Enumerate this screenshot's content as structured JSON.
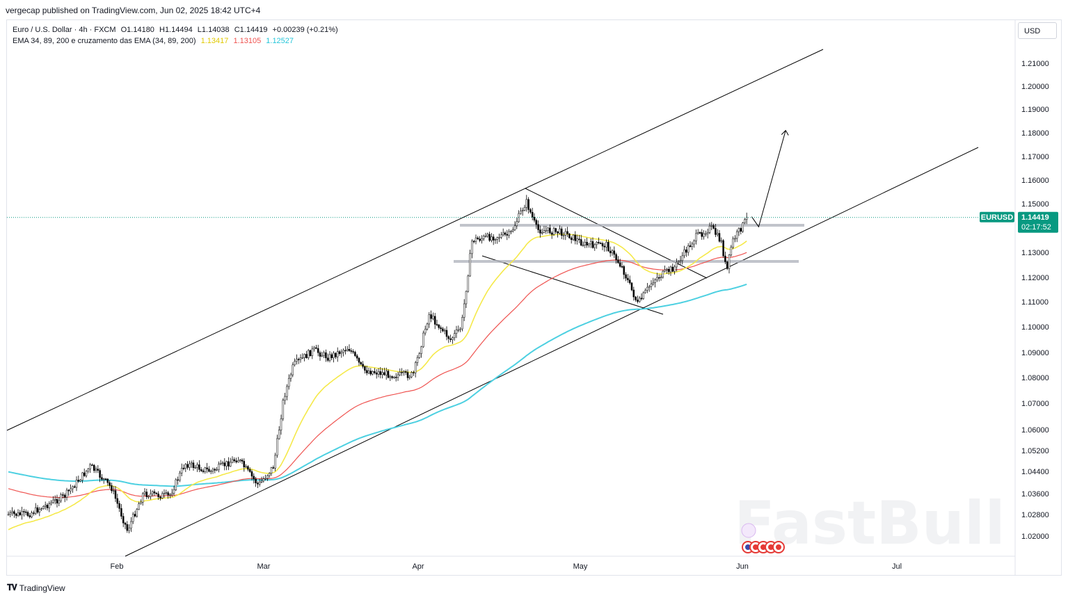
{
  "header": {
    "published": "vergecap published on TradingView.com, Jun 02, 2025 18:42 UTC+4"
  },
  "legend": {
    "symbol_line": "Euro / U.S. Dollar · 4h · FXCM",
    "open": "O1.14180",
    "high": "H1.14494",
    "low": "L1.14038",
    "close": "C1.14419",
    "change": "+0.00239 (+0.21%)",
    "ema_title": "EMA 34, 89, 200 e cruzamento das EMA (34, 89, 200)",
    "ema34_value": "1.13417",
    "ema89_value": "1.13105",
    "ema200_value": "1.12527"
  },
  "currency_button": "USD",
  "price_tag": {
    "symbol": "EURUSD",
    "price": "1.14419",
    "countdown": "02:17:52"
  },
  "footer": {
    "brand": "TradingView",
    "logo": "tradingview-logo"
  },
  "watermark": "FastBull",
  "colors": {
    "ema34": "#f5e94a",
    "ema89": "#ef5350",
    "ema200": "#4dd0e1",
    "price_tag": "#089981",
    "candles": "#000000"
  },
  "chart_data": {
    "type": "candlestick",
    "symbol": "EURUSD",
    "timeframe": "4h",
    "x_ticks": [
      "Feb",
      "Mar",
      "Apr",
      "May",
      "Jun",
      "Jul"
    ],
    "y_ticks": [
      "1.21000",
      "1.20000",
      "1.19000",
      "1.18000",
      "1.17000",
      "1.16000",
      "1.15000",
      "1.14000",
      "1.13000",
      "1.12000",
      "1.11000",
      "1.10000",
      "1.09000",
      "1.08000",
      "1.07000",
      "1.06000",
      "1.05200",
      "1.04400",
      "1.03600",
      "1.02800",
      "1.02000"
    ],
    "last_price": 1.14419,
    "path_points": [
      [
        "Jan 15",
        1.028
      ],
      [
        "Jan 22",
        1.035
      ],
      [
        "Jan 27",
        1.046
      ],
      [
        "Jan 31",
        1.038
      ],
      [
        "Feb 03",
        1.022
      ],
      [
        "Feb 06",
        1.036
      ],
      [
        "Feb 11",
        1.035
      ],
      [
        "Feb 14",
        1.047
      ],
      [
        "Feb 19",
        1.044
      ],
      [
        "Feb 24",
        1.049
      ],
      [
        "Feb 28",
        1.039
      ],
      [
        "Mar 03",
        1.046
      ],
      [
        "Mar 05",
        1.072
      ],
      [
        "Mar 07",
        1.085
      ],
      [
        "Mar 11",
        1.091
      ],
      [
        "Mar 14",
        1.088
      ],
      [
        "Mar 18",
        1.092
      ],
      [
        "Mar 21",
        1.083
      ],
      [
        "Mar 27",
        1.081
      ],
      [
        "Mar 31",
        1.081
      ],
      [
        "Apr 03",
        1.105
      ],
      [
        "Apr 07",
        1.095
      ],
      [
        "Apr 09",
        1.1
      ],
      [
        "Apr 11",
        1.135
      ],
      [
        "Apr 14",
        1.136
      ],
      [
        "Apr 18",
        1.137
      ],
      [
        "Apr 21",
        1.151
      ],
      [
        "Apr 23",
        1.139
      ],
      [
        "Apr 28",
        1.138
      ],
      [
        "May 02",
        1.133
      ],
      [
        "May 06",
        1.133
      ],
      [
        "May 09",
        1.124
      ],
      [
        "May 12",
        1.109
      ],
      [
        "May 15",
        1.119
      ],
      [
        "May 19",
        1.124
      ],
      [
        "May 23",
        1.136
      ],
      [
        "May 26",
        1.14
      ],
      [
        "May 28",
        1.134
      ],
      [
        "May 29",
        1.122
      ],
      [
        "May 30",
        1.134
      ],
      [
        "Jun 02",
        1.14419
      ]
    ],
    "projection": [
      [
        "Jun 02",
        1.142
      ],
      [
        "Jun 04",
        1.181
      ]
    ],
    "ema34": "1.13417",
    "ema89": "1.13105",
    "ema200": "1.12527"
  }
}
